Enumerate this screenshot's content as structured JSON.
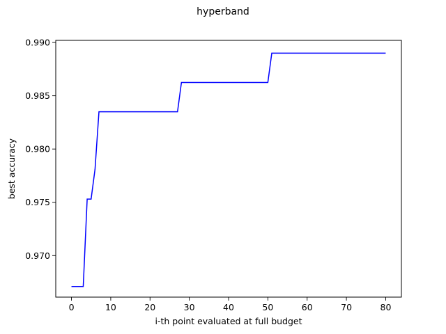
{
  "chart_data": {
    "type": "line",
    "title": "hyperband",
    "xlabel": "i-th point evaluated at full budget",
    "ylabel": "best accuracy",
    "xlim": [
      -4,
      84
    ],
    "ylim": [
      0.9661,
      0.9902
    ],
    "xticks": [
      0,
      10,
      20,
      30,
      40,
      50,
      60,
      70,
      80
    ],
    "yticks": [
      0.97,
      0.975,
      0.98,
      0.985,
      0.99
    ],
    "ytick_labels": [
      "0.970",
      "0.975",
      "0.980",
      "0.985",
      "0.990"
    ],
    "grid": false,
    "series": [
      {
        "color": "#0000ff",
        "x": [
          0,
          1,
          2,
          3,
          4,
          5,
          6,
          7,
          8,
          27,
          28,
          29,
          50,
          51,
          52,
          80
        ],
        "y": [
          0.9671,
          0.9671,
          0.9671,
          0.9671,
          0.9753,
          0.9753,
          0.9781,
          0.9835,
          0.9835,
          0.9835,
          0.98625,
          0.98625,
          0.98625,
          0.989,
          0.989,
          0.989
        ]
      }
    ]
  }
}
